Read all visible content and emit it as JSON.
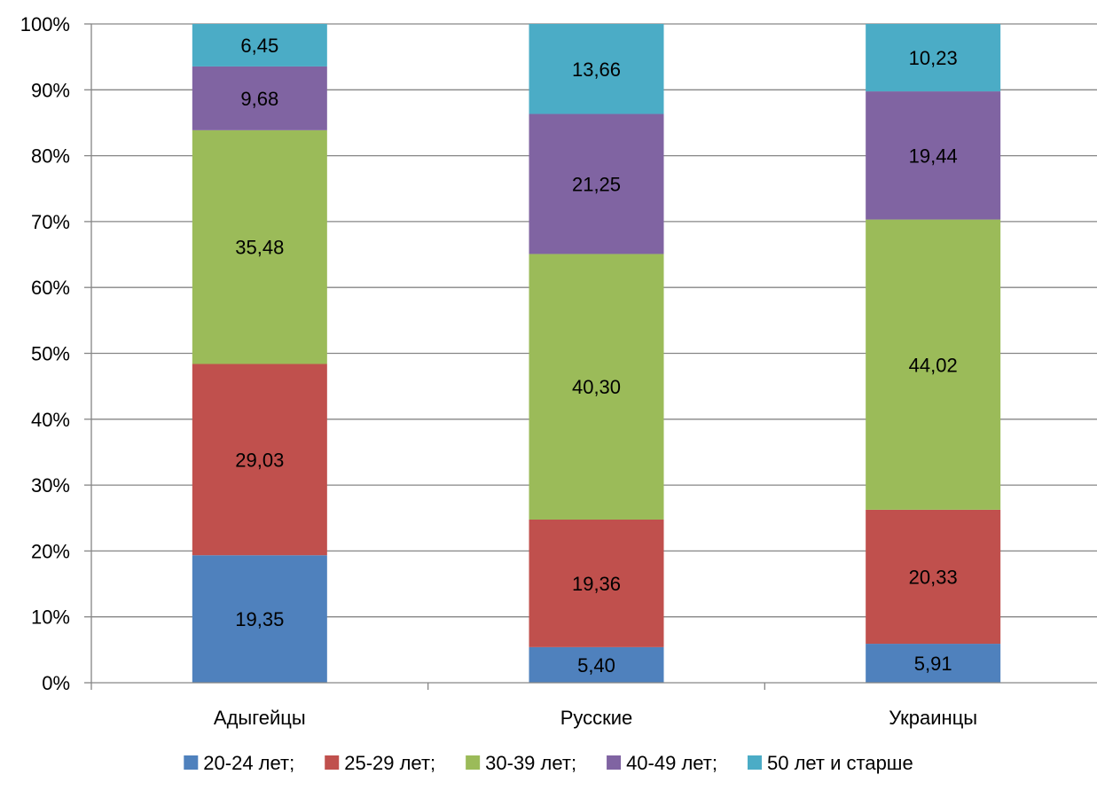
{
  "chart_data": {
    "type": "bar",
    "stacked": true,
    "percent_stacked": true,
    "categories": [
      "Адыгейцы",
      "Русские",
      "Украинцы"
    ],
    "series": [
      {
        "name": "20-24 лет;",
        "color": "#4F81BD",
        "values": [
          19.35,
          5.4,
          5.91
        ],
        "labels": [
          "19,35",
          "5,40",
          "5,91"
        ]
      },
      {
        "name": "25-29 лет;",
        "color": "#C0504D",
        "values": [
          29.03,
          19.36,
          20.33
        ],
        "labels": [
          "29,03",
          "19,36",
          "20,33"
        ]
      },
      {
        "name": "30-39 лет;",
        "color": "#9BBB59",
        "values": [
          35.48,
          40.3,
          44.02
        ],
        "labels": [
          "35,48",
          "40,30",
          "44,02"
        ]
      },
      {
        "name": "40-49 лет;",
        "color": "#8064A2",
        "values": [
          9.68,
          21.25,
          19.44
        ],
        "labels": [
          "9,68",
          "21,25",
          "19,44"
        ]
      },
      {
        "name": "50 лет и старше",
        "color": "#4BACC6",
        "values": [
          6.45,
          13.66,
          10.23
        ],
        "labels": [
          "6,45",
          "13,66",
          "10,23"
        ]
      }
    ],
    "yticks": [
      "0%",
      "10%",
      "20%",
      "30%",
      "40%",
      "50%",
      "60%",
      "70%",
      "80%",
      "90%",
      "100%"
    ],
    "ylim": [
      0,
      100
    ],
    "grid": true,
    "legend_position": "bottom",
    "title": "",
    "xlabel": "",
    "ylabel": ""
  }
}
